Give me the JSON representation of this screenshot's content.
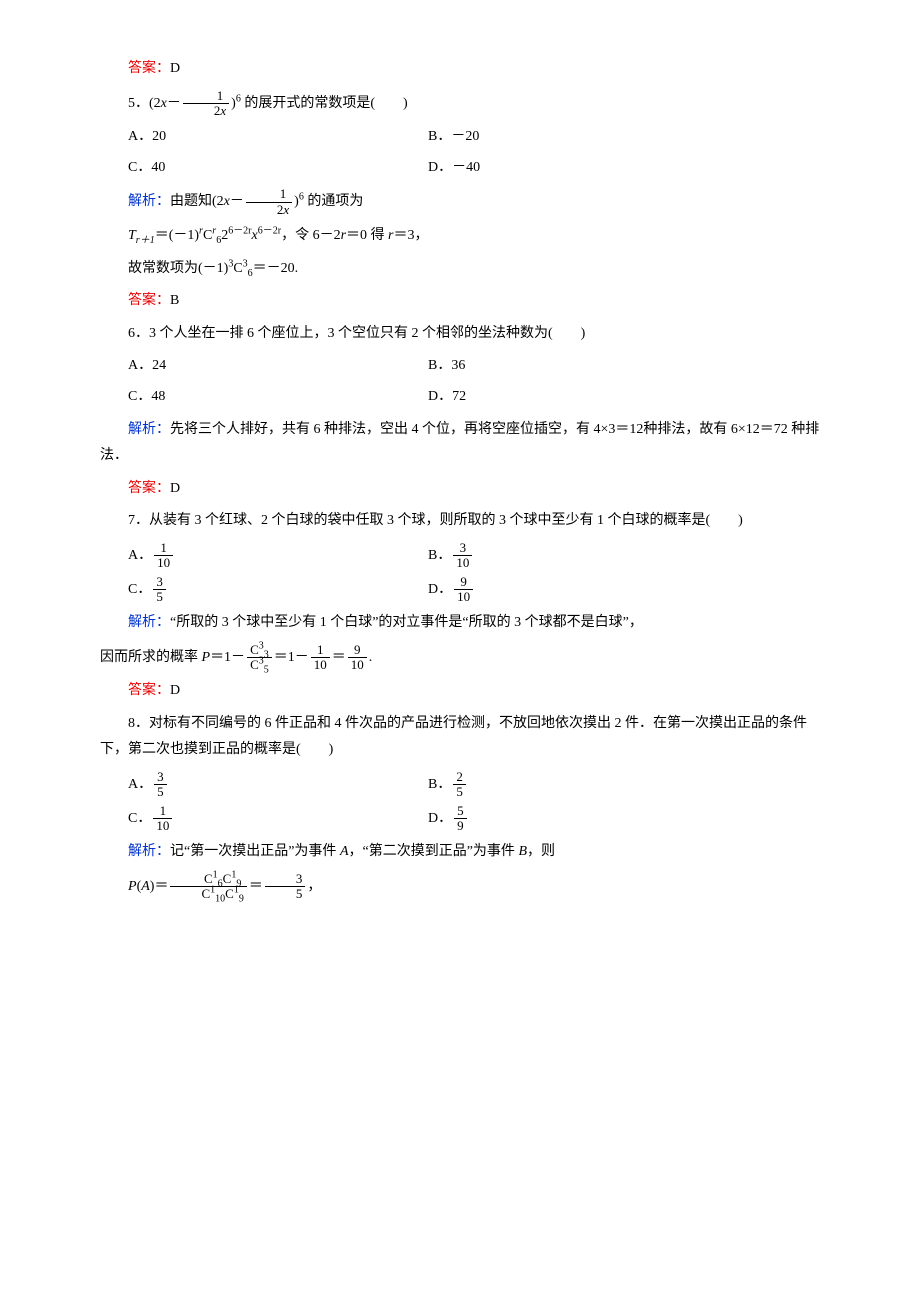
{
  "colors": {
    "answer": "#e60000",
    "analysis": "#0033cc",
    "body_text": "#000000",
    "background": "#ffffff"
  },
  "typography": {
    "body_font": "SimSun",
    "body_size_pt": 10.5,
    "math_font": "Times New Roman"
  },
  "ans4": "D",
  "q5": {
    "num_label": "5．",
    "stem_pre": "(2",
    "stem_x": "x",
    "stem_mid": "－",
    "frac_num": "1",
    "frac_den_2": "2",
    "frac_den_x": "x",
    "stem_post": ")",
    "power": "6",
    "stem_tail": " 的展开式的常数项是(　　)",
    "optA": "A．20",
    "optB": "B．－20",
    "optC": "C．40",
    "optD": "D．－40",
    "analysis_p1_pre": "由题知(2",
    "analysis_p1_x": "x",
    "analysis_p1_minus": "－",
    "analysis_frac_num": "1",
    "analysis_frac_den_2": "2",
    "analysis_frac_den_x": "x",
    "analysis_p1_post": ")",
    "analysis_p1_power": "6",
    "analysis_p1_tail": " 的通项为",
    "analysis_p2_T": "T",
    "analysis_p2_sub": "r＋1",
    "analysis_p2_eq": "＝(－1)",
    "analysis_p2_r": "r",
    "analysis_p2_C": "C",
    "analysis_p2_Csub": "6",
    "analysis_p2_Csup": "r",
    "analysis_p2_2": "2",
    "analysis_p2_2exp": "6－2r",
    "analysis_p2_x": "x",
    "analysis_p2_xexp": "6－2r",
    "analysis_p2_mid": "，令 6－2",
    "analysis_p2_r2": "r",
    "analysis_p2_eq0": "＝0 得 ",
    "analysis_p2_r3": "r",
    "analysis_p2_end": "＝3，",
    "analysis_p3_pre": "故常数项为(－1)",
    "analysis_p3_exp3": "3",
    "analysis_p3_C": "C",
    "analysis_p3_Csub": "6",
    "analysis_p3_Csup": "3",
    "analysis_p3_end": "＝－20.",
    "answer": "B"
  },
  "q6": {
    "num_label": "6．",
    "stem": "3 个人坐在一排 6 个座位上，3 个空位只有 2 个相邻的坐法种数为(　　)",
    "optA": "A．24",
    "optB": "B．36",
    "optC": "C．48",
    "optD": "D．72",
    "analysis": "先将三个人排好，共有 6 种排法，空出 4 个位，再将空座位插空，有 4×3＝12种排法，故有 6×12＝72 种排法．",
    "answer": "D"
  },
  "q7": {
    "num_label": "7．",
    "stem": "从装有 3 个红球、2 个白球的袋中任取 3 个球，则所取的 3 个球中至少有 1 个白球的概率是(　　)",
    "optA_label": "A．",
    "optA_num": "1",
    "optA_den": "10",
    "optB_label": "B．",
    "optB_num": "3",
    "optB_den": "10",
    "optC_label": "C．",
    "optC_num": "3",
    "optC_den": "5",
    "optD_label": "D．",
    "optD_num": "9",
    "optD_den": "10",
    "analysis_p1": "“所取的 3 个球中至少有 1 个白球”的对立事件是“所取的 3 个球都不是白球”，",
    "analysis_p2_pre": "因而所求的概率 ",
    "analysis_p2_P": "P",
    "analysis_p2_eq1": "＝1－",
    "analysis_p2_Cnum_C": "C",
    "analysis_p2_Cnum_sup": "3",
    "analysis_p2_Cnum_sub": "3",
    "analysis_p2_Cden_C": "C",
    "analysis_p2_Cden_sup": "3",
    "analysis_p2_Cden_sub": "5",
    "analysis_p2_eq2": "＝1－",
    "analysis_p2_f2num": "1",
    "analysis_p2_f2den": "10",
    "analysis_p2_eq3": "＝",
    "analysis_p2_f3num": "9",
    "analysis_p2_f3den": "10",
    "analysis_p2_end": ".",
    "answer": "D"
  },
  "q8": {
    "num_label": "8．",
    "stem": "对标有不同编号的 6 件正品和 4 件次品的产品进行检测，不放回地依次摸出 2 件．在第一次摸出正品的条件下，第二次也摸到正品的概率是(　　)",
    "optA_label": "A．",
    "optA_num": "3",
    "optA_den": "5",
    "optB_label": "B．",
    "optB_num": "2",
    "optB_den": "5",
    "optC_label": "C．",
    "optC_num": "1",
    "optC_den": "10",
    "optD_label": "D．",
    "optD_num": "5",
    "optD_den": "9",
    "analysis_p1_pre": "记“第一次摸出正品”为事件 ",
    "analysis_p1_A": "A",
    "analysis_p1_mid": "，“第二次摸到正品”为事件 ",
    "analysis_p1_B": "B",
    "analysis_p1_end": "，则",
    "analysis_p2_P": "P",
    "analysis_p2_open": "(",
    "analysis_p2_A": "A",
    "analysis_p2_close": ")＝",
    "analysis_p2_num_C1": "C",
    "analysis_p2_num_C1sup": "1",
    "analysis_p2_num_C1sub": "6",
    "analysis_p2_num_C2": "C",
    "analysis_p2_num_C2sup": "1",
    "analysis_p2_num_C2sub": "9",
    "analysis_p2_den_C1": "C",
    "analysis_p2_den_C1sup": "1",
    "analysis_p2_den_C1sub": "10",
    "analysis_p2_den_C2": "C",
    "analysis_p2_den_C2sup": "1",
    "analysis_p2_den_C2sub": "9",
    "analysis_p2_eq": "＝",
    "analysis_p2_fnum": "3",
    "analysis_p2_fden": "5",
    "analysis_p2_end": "，"
  },
  "labels": {
    "answer": "答案：",
    "analysis": "解析："
  }
}
